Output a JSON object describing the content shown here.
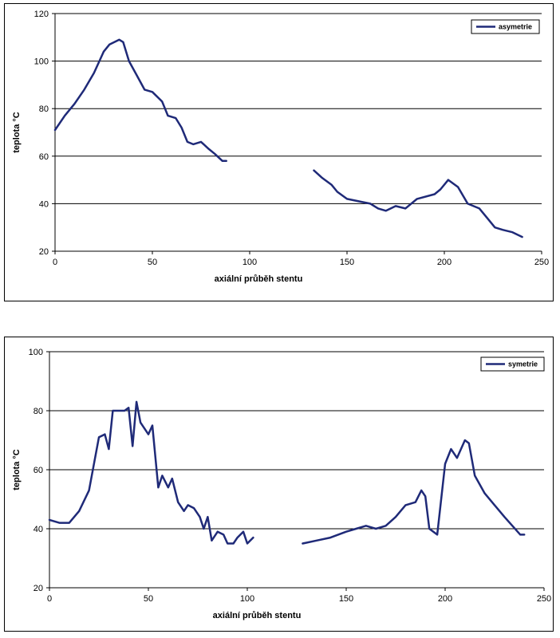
{
  "chart_data": [
    {
      "type": "line",
      "xlabel": "axiální průběh stentu",
      "ylabel": "teplota °C",
      "xlim": [
        0,
        250
      ],
      "ylim": [
        20,
        120
      ],
      "x_ticks": [
        "0",
        "50",
        "100",
        "150",
        "200",
        "250"
      ],
      "y_ticks": [
        "20",
        "40",
        "60",
        "80",
        "100",
        "120"
      ],
      "grid": "horizontal",
      "legend_position": "top-right",
      "series": [
        {
          "name": "asymetrie",
          "color": "#1f2a78",
          "segments": [
            [
              [
                0,
                71
              ],
              [
                5,
                77
              ],
              [
                10,
                82
              ],
              [
                15,
                88
              ],
              [
                20,
                95
              ],
              [
                25,
                104
              ],
              [
                28,
                107
              ],
              [
                33,
                109
              ],
              [
                35,
                108
              ],
              [
                38,
                100
              ],
              [
                42,
                94
              ],
              [
                46,
                88
              ],
              [
                50,
                87
              ],
              [
                55,
                83
              ],
              [
                58,
                77
              ],
              [
                62,
                76
              ],
              [
                65,
                72
              ],
              [
                68,
                66
              ],
              [
                71,
                65
              ],
              [
                75,
                66
              ],
              [
                79,
                63
              ],
              [
                82,
                61
              ],
              [
                86,
                58
              ],
              [
                88,
                58
              ]
            ],
            [
              [
                133,
                54
              ],
              [
                137,
                51
              ],
              [
                142,
                48
              ],
              [
                145,
                45
              ],
              [
                150,
                42
              ],
              [
                156,
                41
              ],
              [
                162,
                40
              ],
              [
                166,
                38
              ],
              [
                170,
                37
              ],
              [
                175,
                39
              ],
              [
                180,
                38
              ],
              [
                186,
                42
              ],
              [
                195,
                44
              ],
              [
                198,
                46
              ],
              [
                202,
                50
              ],
              [
                207,
                47
              ],
              [
                212,
                40
              ],
              [
                215,
                39
              ],
              [
                218,
                38
              ],
              [
                222,
                34
              ],
              [
                226,
                30
              ],
              [
                230,
                29
              ],
              [
                235,
                28
              ],
              [
                240,
                26
              ]
            ]
          ]
        }
      ]
    },
    {
      "type": "line",
      "xlabel": "axiální průběh stentu",
      "ylabel": "teplota °C",
      "xlim": [
        0,
        250
      ],
      "ylim": [
        20,
        100
      ],
      "x_ticks": [
        "0",
        "50",
        "100",
        "150",
        "200",
        "250"
      ],
      "y_ticks": [
        "20",
        "40",
        "60",
        "80",
        "100"
      ],
      "grid": "horizontal",
      "legend_position": "top-right",
      "series": [
        {
          "name": "symetrie",
          "color": "#1f2a78",
          "segments": [
            [
              [
                0,
                43
              ],
              [
                5,
                42
              ],
              [
                10,
                42
              ],
              [
                15,
                46
              ],
              [
                20,
                53
              ],
              [
                25,
                71
              ],
              [
                28,
                72
              ],
              [
                30,
                67
              ],
              [
                32,
                80
              ],
              [
                35,
                80
              ],
              [
                38,
                80
              ],
              [
                40,
                81
              ],
              [
                42,
                68
              ],
              [
                44,
                83
              ],
              [
                46,
                76
              ],
              [
                50,
                72
              ],
              [
                52,
                75
              ],
              [
                55,
                54
              ],
              [
                57,
                58
              ],
              [
                60,
                54
              ],
              [
                62,
                57
              ],
              [
                65,
                49
              ],
              [
                68,
                46
              ],
              [
                70,
                48
              ],
              [
                73,
                47
              ],
              [
                76,
                44
              ],
              [
                78,
                40
              ],
              [
                80,
                44
              ],
              [
                82,
                36
              ],
              [
                85,
                39
              ],
              [
                88,
                38
              ],
              [
                90,
                35
              ],
              [
                93,
                35
              ],
              [
                95,
                37
              ],
              [
                98,
                39
              ],
              [
                100,
                35
              ],
              [
                103,
                37
              ]
            ],
            [
              [
                128,
                35
              ],
              [
                135,
                36
              ],
              [
                142,
                37
              ],
              [
                150,
                39
              ],
              [
                155,
                40
              ],
              [
                160,
                41
              ],
              [
                165,
                40
              ],
              [
                170,
                41
              ],
              [
                175,
                44
              ],
              [
                180,
                48
              ],
              [
                185,
                49
              ],
              [
                188,
                53
              ],
              [
                190,
                51
              ],
              [
                192,
                40
              ],
              [
                196,
                38
              ],
              [
                200,
                62
              ],
              [
                203,
                67
              ],
              [
                206,
                64
              ],
              [
                210,
                70
              ],
              [
                212,
                69
              ],
              [
                215,
                58
              ],
              [
                220,
                52
              ],
              [
                225,
                48
              ],
              [
                230,
                44
              ],
              [
                234,
                41
              ],
              [
                238,
                38
              ],
              [
                240,
                38
              ]
            ]
          ]
        }
      ]
    }
  ]
}
